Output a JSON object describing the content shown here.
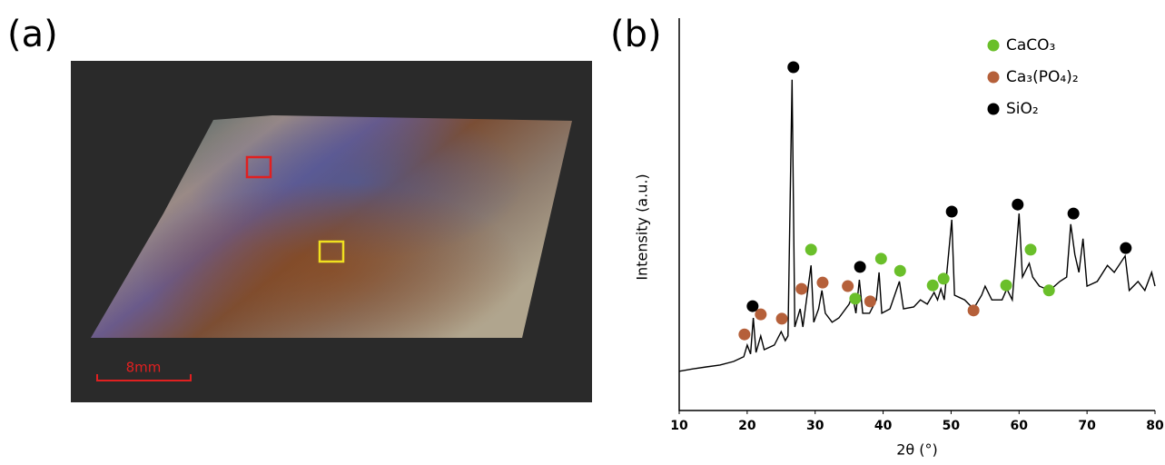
{
  "panel_a": {
    "label": "(a)",
    "scale_bar": "8mm"
  },
  "chart_data": {
    "type": "line",
    "label": "(b)",
    "x_label": "2θ (°)",
    "y_label": "Intensity (a.u.)",
    "color": "#000000",
    "xlim": [
      10,
      80
    ],
    "xticks": [
      10,
      20,
      30,
      40,
      50,
      60,
      70,
      80
    ],
    "ylim": [
      0,
      100
    ],
    "legend": "upper right",
    "x": [
      10,
      12,
      14,
      16,
      18,
      19.5,
      20,
      20.5,
      20.9,
      21.3,
      22,
      22.5,
      24,
      25,
      25.6,
      26,
      26.6,
      27,
      27.8,
      28.2,
      29.4,
      29.8,
      30.5,
      31,
      31.5,
      32.5,
      33.5,
      35,
      35.5,
      36,
      36.5,
      37,
      38,
      39,
      39.4,
      39.8,
      41,
      42.4,
      43,
      44.5,
      45.5,
      46.5,
      47.5,
      48,
      48.5,
      49,
      50.1,
      50.5,
      52,
      53.3,
      54.5,
      55,
      56,
      57.5,
      58.2,
      59,
      60,
      60.5,
      61.5,
      62,
      63,
      64.5,
      66,
      67,
      67.6,
      68.2,
      68.8,
      69.4,
      70,
      71.5,
      73,
      74,
      75.6,
      76.2,
      77.5,
      78.5,
      79.5,
      80
    ],
    "values": [
      10,
      10.6,
      11.1,
      11.6,
      12.5,
      13.7,
      16.7,
      14.4,
      23.6,
      14.8,
      19,
      15.5,
      16.7,
      20.1,
      17.8,
      19,
      84.3,
      21.3,
      25.9,
      21.3,
      37,
      22.5,
      25.9,
      30.6,
      24.8,
      22.5,
      23.6,
      27.1,
      29.4,
      24.8,
      33.3,
      24.8,
      24.8,
      28.2,
      35.2,
      24.8,
      25.9,
      32.9,
      25.9,
      26.4,
      28.2,
      27.1,
      30.1,
      28.2,
      31,
      28.2,
      48.6,
      29.4,
      28.2,
      25.9,
      29.4,
      31.7,
      28.2,
      28.2,
      31,
      28.2,
      50.2,
      34,
      37.5,
      34,
      31.7,
      30.6,
      32.9,
      34,
      47.5,
      39.8,
      35.2,
      43.8,
      31.7,
      32.9,
      37,
      35.2,
      39.4,
      30.6,
      32.9,
      30.6,
      35.2,
      31.7
    ],
    "markers": [
      {
        "name": "CaCO₃",
        "color": "#6abf2a",
        "x": [
          29.4,
          35.9,
          39.7,
          42.5,
          47.3,
          48.9,
          58.1,
          61.7,
          64.4
        ],
        "values": [
          41,
          28.5,
          38.7,
          35.6,
          31.9,
          33.6,
          31.9,
          41,
          30.6
        ]
      },
      {
        "name": "Ca₃(PO₄)₂",
        "color": "#b5603a",
        "x": [
          19.6,
          22,
          25.1,
          28,
          31.1,
          34.8,
          38.1,
          53.3
        ],
        "values": [
          19.4,
          24.5,
          23.4,
          31,
          32.6,
          31.7,
          27.8,
          25.5
        ]
      },
      {
        "name": "SiO₂",
        "color": "#000000",
        "x": [
          20.8,
          26.8,
          36.6,
          50.1,
          59.8,
          68,
          75.7
        ],
        "values": [
          26.6,
          87.5,
          36.6,
          50.7,
          52.5,
          50.2,
          41.4
        ]
      }
    ]
  }
}
